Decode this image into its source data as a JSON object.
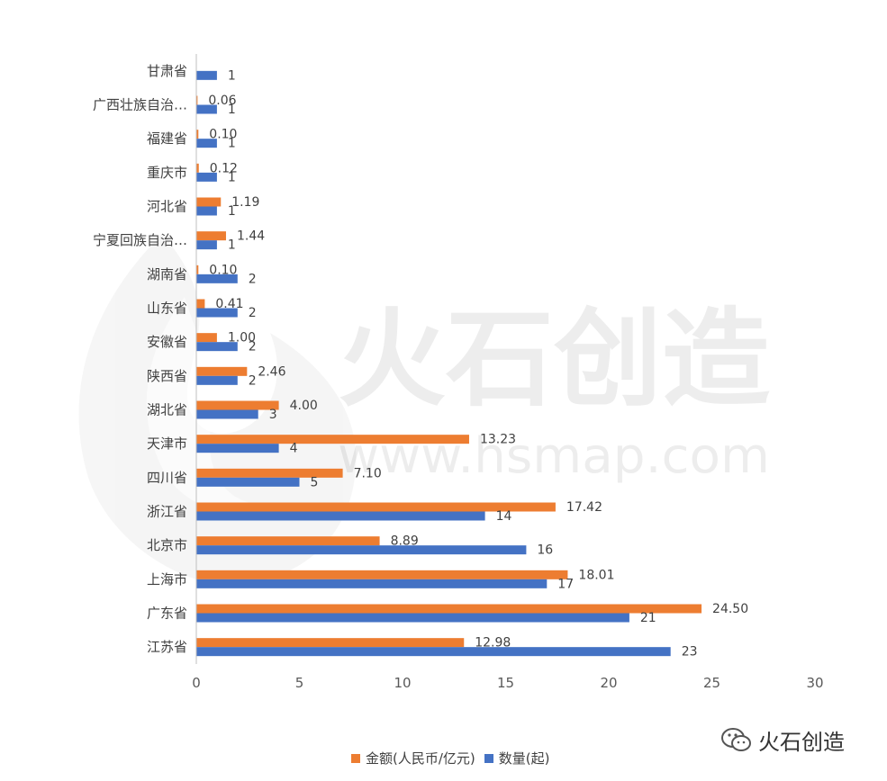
{
  "chart_data": {
    "type": "bar",
    "orientation": "horizontal",
    "categories": [
      "甘肃省",
      "广西壮族自治…",
      "福建省",
      "重庆市",
      "河北省",
      "宁夏回族自治…",
      "湖南省",
      "山东省",
      "安徽省",
      "陕西省",
      "湖北省",
      "天津市",
      "四川省",
      "浙江省",
      "北京市",
      "上海市",
      "广东省",
      "江苏省"
    ],
    "series": [
      {
        "name": "金额(人民币/亿元)",
        "color": "#ED7D31",
        "values": [
          null,
          0.06,
          0.1,
          0.12,
          1.19,
          1.44,
          0.1,
          0.41,
          1.0,
          2.46,
          4.0,
          13.23,
          7.1,
          17.42,
          8.89,
          18.01,
          24.5,
          12.98
        ],
        "labels": [
          "",
          "0.06",
          "0.10",
          "0.12",
          "1.19",
          "1.44",
          "0.10",
          "0.41",
          "1.00",
          "2.46",
          "4.00",
          "13.23",
          "7.10",
          "17.42",
          "8.89",
          "18.01",
          "24.50",
          "12.98"
        ]
      },
      {
        "name": "数量(起)",
        "color": "#4472C4",
        "values": [
          1,
          1,
          1,
          1,
          1,
          1,
          2,
          2,
          2,
          2,
          3,
          4,
          5,
          14,
          16,
          17,
          21,
          23
        ],
        "labels": [
          "1",
          "1",
          "1",
          "1",
          "1",
          "1",
          "2",
          "2",
          "2",
          "2",
          "3",
          "4",
          "5",
          "14",
          "16",
          "17",
          "21",
          "23"
        ]
      }
    ],
    "xlim": [
      0,
      30
    ],
    "xticks": [
      "0",
      "5",
      "10",
      "15",
      "20",
      "25",
      "30"
    ],
    "grid": false,
    "legend_position": "bottom"
  },
  "watermark": {
    "brand": "火石创造",
    "url": "www.hsmap.com"
  },
  "badge": {
    "icon": "wechat-icon",
    "text": "火石创造"
  }
}
